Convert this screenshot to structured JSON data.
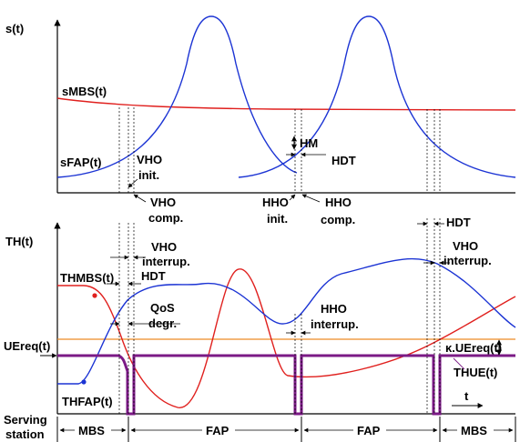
{
  "top": {
    "y_axis_label": "s(t)",
    "s_mbs_label": "sMBS(t)",
    "s_fap_label": "sFAP(t)",
    "vho_init": [
      "VHO",
      "init."
    ],
    "vho_comp": [
      "VHO",
      "comp."
    ],
    "hm": "HM",
    "hdt": "HDT",
    "hho_init": [
      "HHO",
      "init."
    ],
    "hho_comp": [
      "HHO",
      "comp."
    ]
  },
  "bottom": {
    "y_axis_label": "TH(t)",
    "th_mbs_label": "THMBS(t)",
    "th_fap_label": "THFAP(t)",
    "ue_req_label": "UEreq(t)",
    "th_ue_label": "THUE(t)",
    "kappa_label": "κ.UEreq(t)",
    "vho_interrup_1": [
      "VHO",
      "interrup."
    ],
    "hdt_1": "HDT",
    "qos_degr": [
      "QoS",
      "degr."
    ],
    "hho_interrup": [
      "HHO",
      "interrup."
    ],
    "hdt_2": "HDT",
    "vho_interrup_2": [
      "VHO",
      "interrup."
    ],
    "t_axis": "t"
  },
  "serving": {
    "label": [
      "Serving",
      "station"
    ],
    "segments": [
      "MBS",
      "FAP",
      "FAP",
      "MBS"
    ]
  },
  "colors": {
    "mbs": "#e0201e",
    "fap": "#1c34d4",
    "ue": "#7b1a86",
    "ue_req": "#ee8a24",
    "axis": "#000000"
  }
}
